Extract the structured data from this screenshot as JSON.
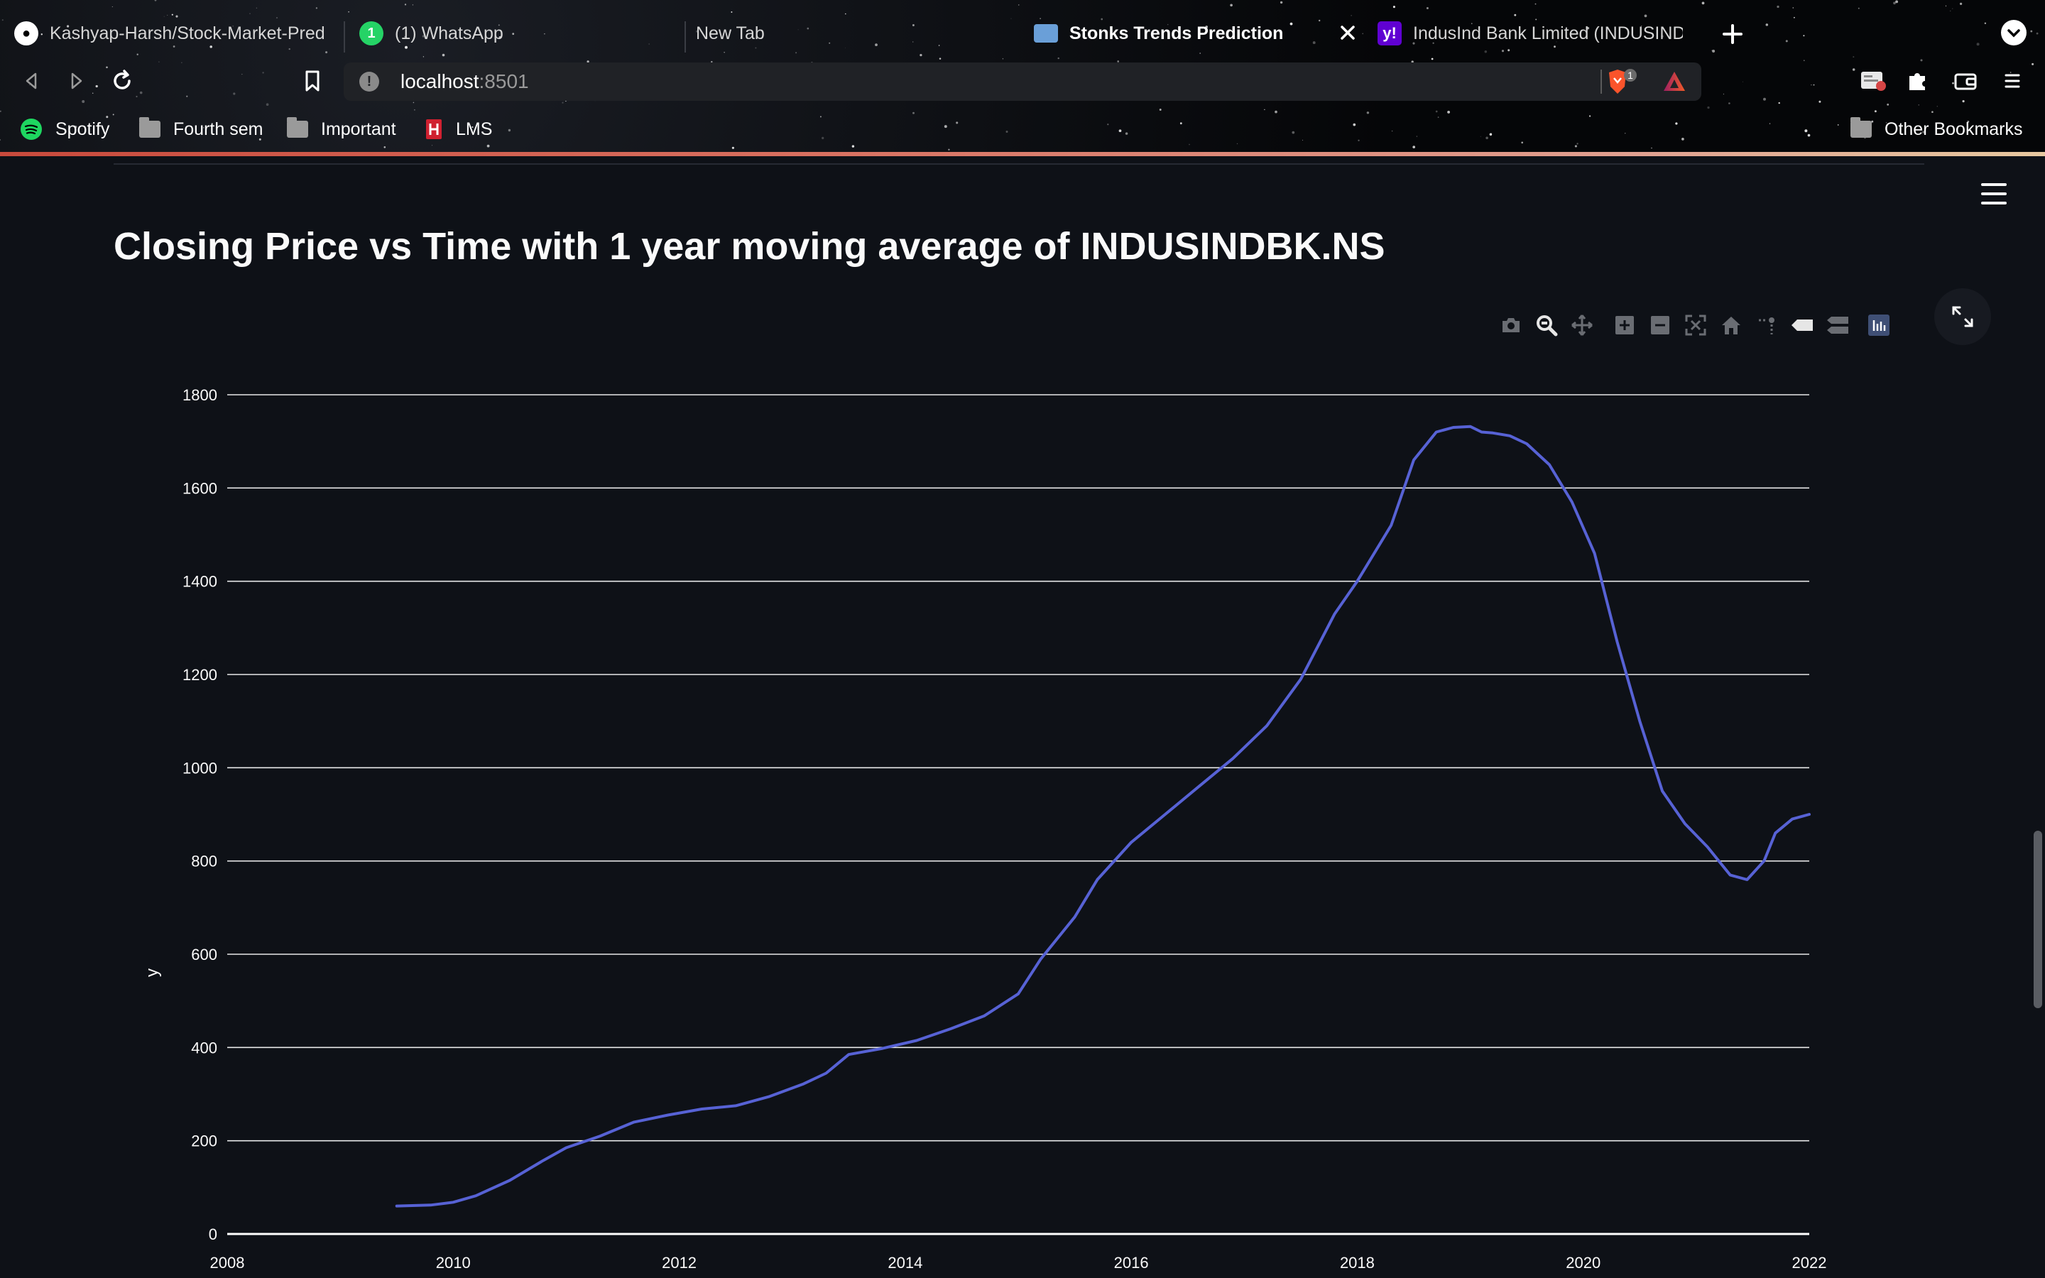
{
  "browser": {
    "tabs": [
      {
        "title": "Kashyap-Harsh/Stock-Market-Pred",
        "icon": "github-icon"
      },
      {
        "title": "(1) WhatsApp",
        "icon": "whatsapp-icon",
        "badge": "1"
      },
      {
        "title": "New Tab",
        "icon": ""
      },
      {
        "title": "Stonks Trends Prediction",
        "icon": "laptop-icon",
        "active": true
      },
      {
        "title": "IndusInd Bank Limited (INDUSINDB",
        "icon": "yahoo-icon"
      }
    ],
    "address": {
      "host": "localhost",
      "port": ":8501"
    },
    "shield_badge": "1",
    "bookmarks": [
      {
        "label": "Spotify",
        "icon": "spotify-icon"
      },
      {
        "label": "Fourth sem",
        "icon": "folder-icon"
      },
      {
        "label": "Important",
        "icon": "folder-icon"
      },
      {
        "label": "LMS",
        "icon": "lms-icon"
      }
    ],
    "other_bookmarks": "Other Bookmarks"
  },
  "page": {
    "title": "Closing Price vs Time with 1 year moving average of INDUSINDBK.NS"
  },
  "colors": {
    "background": "#0e1117",
    "line": "#5762d5",
    "grid": "#ffffff",
    "text": "#fafafa"
  },
  "chart_data": {
    "type": "line",
    "title": "",
    "xlabel": "",
    "ylabel": "y",
    "xlim": [
      2008,
      2022
    ],
    "ylim": [
      0,
      1800
    ],
    "x_ticks": [
      2008,
      2010,
      2012,
      2014,
      2016,
      2018,
      2020,
      2022
    ],
    "y_ticks": [
      0,
      200,
      400,
      600,
      800,
      1000,
      1200,
      1400,
      1600,
      1800
    ],
    "grid": true,
    "series": [
      {
        "color": "#5762d5",
        "x": [
          2009.5,
          2009.8,
          2010.0,
          2010.2,
          2010.5,
          2010.8,
          2011.0,
          2011.3,
          2011.6,
          2011.9,
          2012.2,
          2012.5,
          2012.8,
          2013.1,
          2013.3,
          2013.5,
          2013.8,
          2014.1,
          2014.4,
          2014.7,
          2015.0,
          2015.2,
          2015.5,
          2015.7,
          2016.0,
          2016.3,
          2016.6,
          2016.9,
          2017.2,
          2017.5,
          2017.8,
          2018.0,
          2018.3,
          2018.5,
          2018.7,
          2018.85,
          2019.0,
          2019.1,
          2019.2,
          2019.35,
          2019.5,
          2019.7,
          2019.9,
          2020.1,
          2020.3,
          2020.5,
          2020.7,
          2020.9,
          2021.1,
          2021.3,
          2021.45,
          2021.6,
          2021.7,
          2021.85,
          2022.0
        ],
        "y": [
          60,
          62,
          68,
          82,
          115,
          158,
          185,
          210,
          240,
          255,
          268,
          275,
          295,
          322,
          345,
          385,
          398,
          415,
          440,
          468,
          515,
          590,
          680,
          760,
          840,
          900,
          960,
          1020,
          1090,
          1190,
          1330,
          1400,
          1520,
          1660,
          1720,
          1730,
          1732,
          1720,
          1718,
          1712,
          1695,
          1650,
          1570,
          1460,
          1270,
          1100,
          950,
          880,
          830,
          770,
          760,
          800,
          860,
          890,
          900
        ]
      }
    ]
  }
}
